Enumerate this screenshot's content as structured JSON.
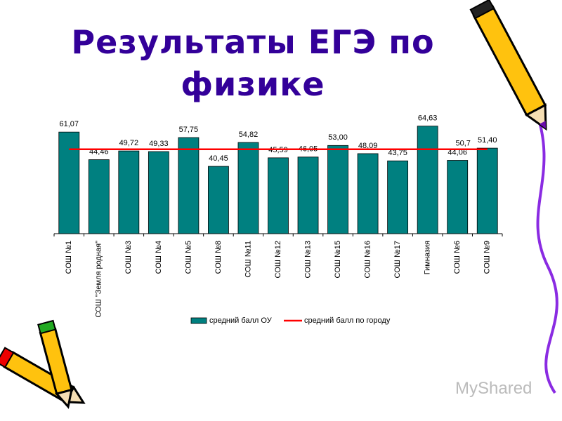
{
  "title": "Результаты ЕГЭ по физике",
  "watermark": "MyShared",
  "chart_data": {
    "type": "bar",
    "categories": [
      "СОШ №1",
      "СОШ \"Земля родная\"",
      "СОШ №3",
      "СОШ №4",
      "СОШ №5",
      "СОШ №8",
      "СОШ №11",
      "СОШ №12",
      "СОШ №13",
      "СОШ №15",
      "СОШ №16",
      "СОШ №17",
      "Гимназия",
      "СОШ №6",
      "СОШ №9"
    ],
    "series": [
      {
        "name": "средний балл ОУ",
        "color": "#008080",
        "values": [
          61.07,
          44.46,
          49.72,
          49.33,
          57.75,
          40.45,
          54.82,
          45.59,
          46.05,
          53.0,
          48.09,
          43.75,
          64.63,
          44.06,
          51.4
        ],
        "value_labels": [
          "61,07",
          "44,46",
          "49,72",
          "49,33",
          "57,75",
          "40,45",
          "54,82",
          "45,59",
          "46,05",
          "53,00",
          "48,09",
          "43,75",
          "64,63",
          "44,06",
          "51,40"
        ]
      }
    ],
    "reference_line": {
      "name": "средний балл по городу",
      "color": "#ff0000",
      "value": 50.7,
      "value_label": "50,7"
    },
    "ylim": [
      0,
      70
    ]
  }
}
